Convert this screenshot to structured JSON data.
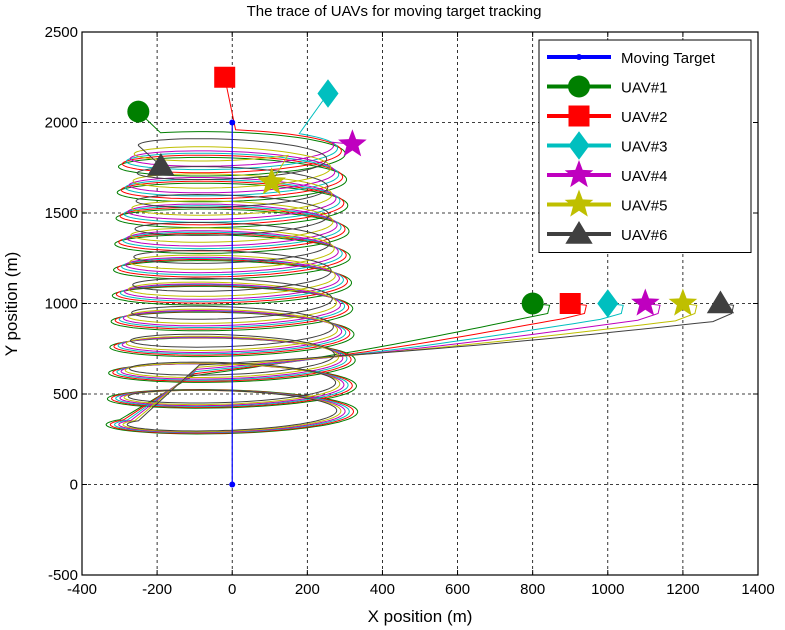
{
  "chart_data": {
    "type": "line",
    "title": "The trace of UAVs for moving target tracking",
    "xlabel": "X position (m)",
    "ylabel": "Y position (m)",
    "xlim": [
      -400,
      1400
    ],
    "ylim": [
      -500,
      2500
    ],
    "xticks": [
      -400,
      -200,
      0,
      200,
      400,
      600,
      800,
      1000,
      1200,
      1400
    ],
    "yticks": [
      -500,
      0,
      500,
      1000,
      1500,
      2000,
      2500
    ],
    "xtick_labels": [
      "-400",
      "-200",
      "0",
      "200",
      "400",
      "600",
      "800",
      "1000",
      "1200",
      "1400"
    ],
    "ytick_labels": [
      "-500",
      "0",
      "500",
      "1000",
      "1500",
      "2000",
      "2500"
    ],
    "grid": true,
    "legend_position": "top-right",
    "target": {
      "name": "Moving Target",
      "color": "#0000ff",
      "path": [
        [
          0,
          0
        ],
        [
          0,
          2000
        ]
      ]
    },
    "series": [
      {
        "name": "UAV#1",
        "color": "#007f00",
        "marker": "circle",
        "start": [
          800,
          1000
        ],
        "end": [
          -250,
          2060
        ],
        "orbit_radius": 300
      },
      {
        "name": "UAV#2",
        "color": "#ff0000",
        "marker": "square",
        "start": [
          900,
          1000
        ],
        "end": [
          -20,
          2250
        ],
        "orbit_radius": 290
      },
      {
        "name": "UAV#3",
        "color": "#00bfbf",
        "marker": "diamond",
        "start": [
          1000,
          1000
        ],
        "end": [
          255,
          2160
        ],
        "orbit_radius": 280
      },
      {
        "name": "UAV#4",
        "color": "#bf00bf",
        "marker": "star",
        "start": [
          1100,
          1000
        ],
        "end": [
          320,
          1880
        ],
        "orbit_radius": 270
      },
      {
        "name": "UAV#5",
        "color": "#bfbf00",
        "marker": "star",
        "start": [
          1200,
          1000
        ],
        "end": [
          105,
          1670
        ],
        "orbit_radius": 260
      },
      {
        "name": "UAV#6",
        "color": "#404040",
        "marker": "triangle",
        "start": [
          1300,
          1000
        ],
        "end": [
          -190,
          1760
        ],
        "orbit_radius": 250
      }
    ]
  }
}
